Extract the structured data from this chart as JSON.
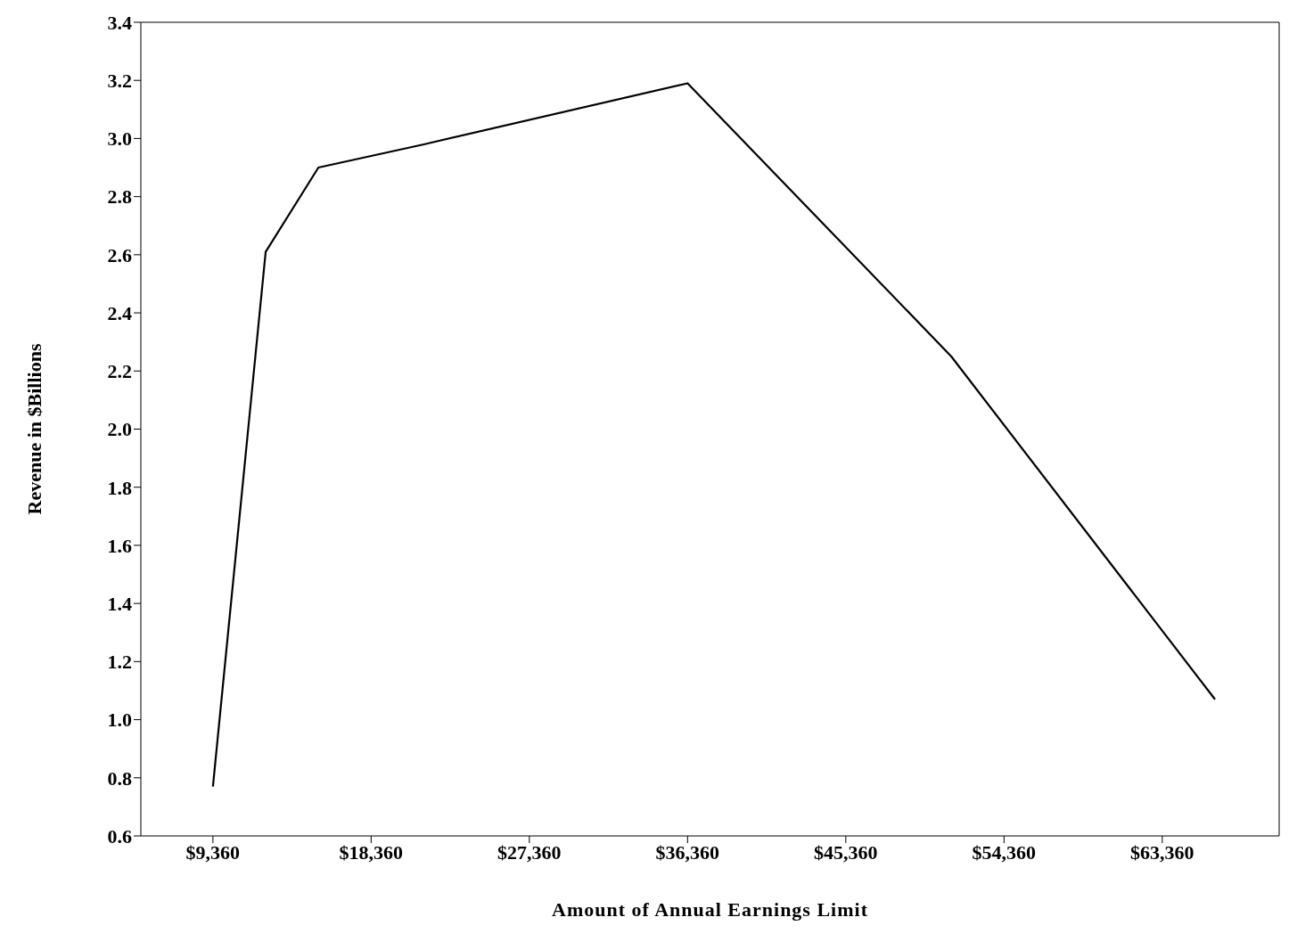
{
  "chart_data": {
    "type": "line",
    "xlabel": "Amount of Annual Earnings Limit",
    "ylabel": "Revenue in $Billions",
    "x": [
      9360,
      12360,
      15360,
      21360,
      36360,
      51360,
      66360
    ],
    "series": [
      {
        "color": "#000000",
        "values": [
          0.77,
          2.61,
          2.9,
          2.98,
          3.19,
          2.25,
          1.07
        ]
      }
    ],
    "xlim": [
      5260,
      70010
    ],
    "xticks": [
      {
        "value": 9360,
        "label": "$9,360"
      },
      {
        "value": 18360,
        "label": "$18,360"
      },
      {
        "value": 27360,
        "label": "$27,360"
      },
      {
        "value": 36360,
        "label": "$36,360"
      },
      {
        "value": 45360,
        "label": "$45,360"
      },
      {
        "value": 54360,
        "label": "$54,360"
      },
      {
        "value": 63360,
        "label": "$63,360"
      }
    ],
    "ylim": [
      0.6,
      3.4
    ],
    "yticks": [
      {
        "value": 0.6,
        "label": "0.6"
      },
      {
        "value": 0.8,
        "label": "0.8"
      },
      {
        "value": 1.0,
        "label": "1.0"
      },
      {
        "value": 1.2,
        "label": "1.2"
      },
      {
        "value": 1.4,
        "label": "1.4"
      },
      {
        "value": 1.6,
        "label": "1.6"
      },
      {
        "value": 1.8,
        "label": "1.8"
      },
      {
        "value": 2.0,
        "label": "2.0"
      },
      {
        "value": 2.2,
        "label": "2.2"
      },
      {
        "value": 2.4,
        "label": "2.4"
      },
      {
        "value": 2.6,
        "label": "2.6"
      },
      {
        "value": 2.8,
        "label": "2.8"
      },
      {
        "value": 3.0,
        "label": "3.0"
      },
      {
        "value": 3.2,
        "label": "3.2"
      },
      {
        "value": 3.4,
        "label": "3.4"
      }
    ],
    "grid": false,
    "legend": false,
    "marker": "none",
    "line_style": "solid"
  }
}
